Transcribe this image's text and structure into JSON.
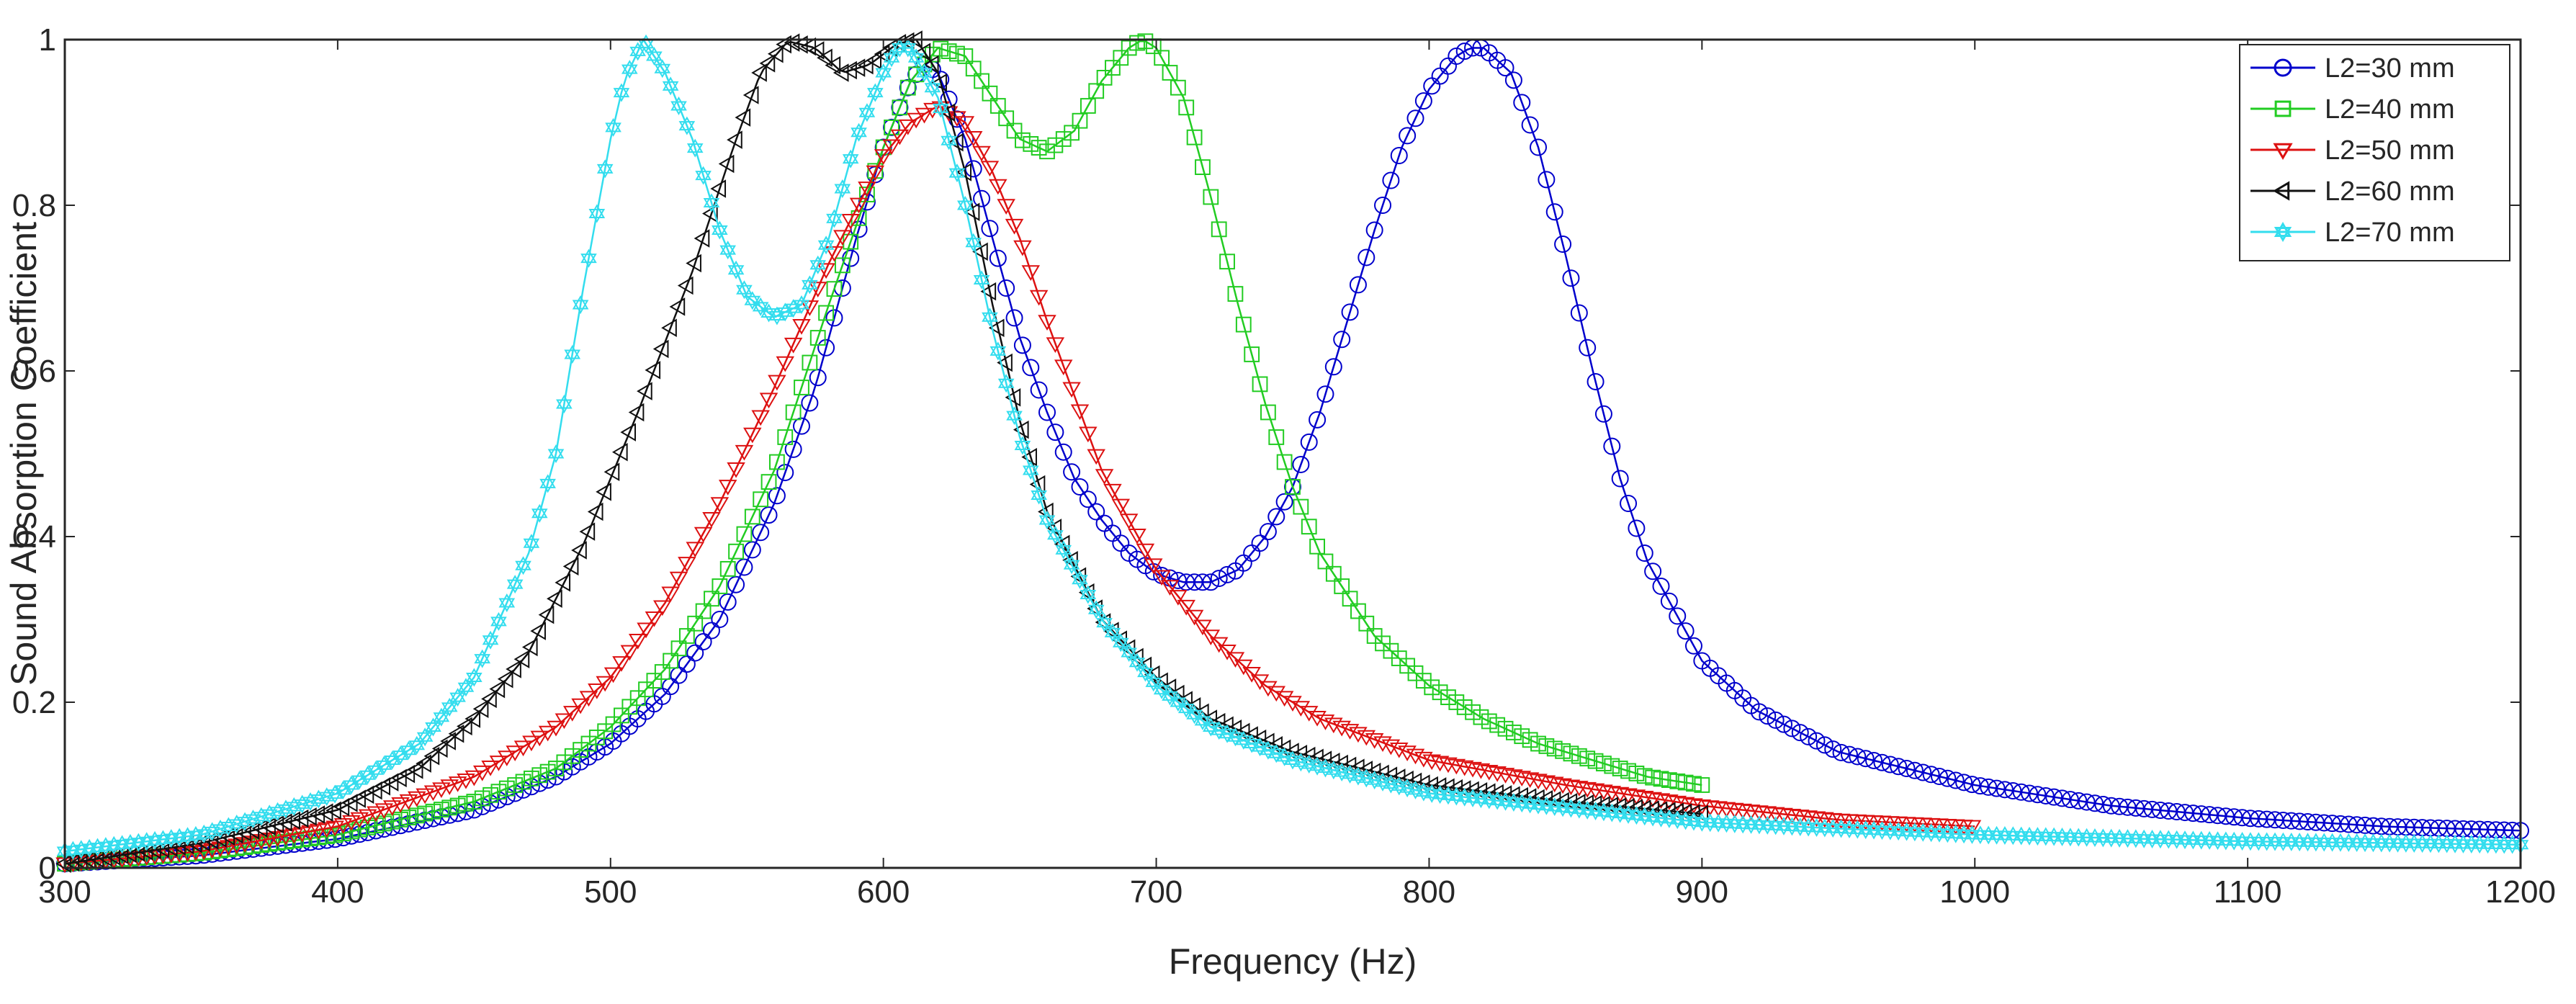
{
  "chart_data": {
    "type": "line",
    "title": "",
    "xlabel": "Frequency (Hz)",
    "ylabel": "Sound Absorption Coefficient",
    "xlim": [
      300,
      1200
    ],
    "ylim": [
      0,
      1
    ],
    "x_ticks": [
      300,
      400,
      500,
      600,
      700,
      800,
      900,
      1000,
      1100,
      1200
    ],
    "y_ticks": [
      0,
      0.2,
      0.4,
      0.6,
      0.8,
      1
    ],
    "x_tick_labels": [
      "300",
      "400",
      "500",
      "600",
      "700",
      "800",
      "900",
      "1000",
      "1100",
      "1200"
    ],
    "y_tick_labels": [
      "0",
      "0.2",
      "0.4",
      "0.6",
      "0.8",
      "1"
    ],
    "grid": false,
    "legend_position": "top-right",
    "series": [
      {
        "name": "L2=30 mm",
        "color": "#0000cc",
        "marker": "circle",
        "x_range": [
          300,
          1200
        ],
        "points": [
          [
            300,
            0.005
          ],
          [
            350,
            0.015
          ],
          [
            400,
            0.035
          ],
          [
            450,
            0.07
          ],
          [
            480,
            0.11
          ],
          [
            500,
            0.15
          ],
          [
            520,
            0.21
          ],
          [
            540,
            0.3
          ],
          [
            560,
            0.44
          ],
          [
            575,
            0.58
          ],
          [
            590,
            0.76
          ],
          [
            600,
            0.87
          ],
          [
            610,
            0.95
          ],
          [
            615,
            0.97
          ],
          [
            620,
            0.96
          ],
          [
            630,
            0.88
          ],
          [
            640,
            0.76
          ],
          [
            650,
            0.64
          ],
          [
            660,
            0.55
          ],
          [
            670,
            0.47
          ],
          [
            680,
            0.42
          ],
          [
            690,
            0.38
          ],
          [
            700,
            0.355
          ],
          [
            710,
            0.345
          ],
          [
            720,
            0.345
          ],
          [
            730,
            0.36
          ],
          [
            740,
            0.4
          ],
          [
            750,
            0.46
          ],
          [
            760,
            0.55
          ],
          [
            770,
            0.66
          ],
          [
            780,
            0.77
          ],
          [
            790,
            0.87
          ],
          [
            800,
            0.94
          ],
          [
            810,
            0.98
          ],
          [
            815,
            0.99
          ],
          [
            820,
            0.99
          ],
          [
            830,
            0.96
          ],
          [
            840,
            0.87
          ],
          [
            850,
            0.74
          ],
          [
            860,
            0.6
          ],
          [
            870,
            0.47
          ],
          [
            880,
            0.37
          ],
          [
            900,
            0.25
          ],
          [
            920,
            0.19
          ],
          [
            950,
            0.14
          ],
          [
            1000,
            0.1
          ],
          [
            1050,
            0.075
          ],
          [
            1100,
            0.06
          ],
          [
            1150,
            0.05
          ],
          [
            1200,
            0.045
          ]
        ]
      },
      {
        "name": "L2=40 mm",
        "color": "#22cc22",
        "marker": "square",
        "x_range": [
          300,
          900
        ],
        "points": [
          [
            300,
            0.005
          ],
          [
            350,
            0.018
          ],
          [
            400,
            0.04
          ],
          [
            450,
            0.08
          ],
          [
            480,
            0.12
          ],
          [
            500,
            0.17
          ],
          [
            520,
            0.24
          ],
          [
            540,
            0.34
          ],
          [
            560,
            0.48
          ],
          [
            580,
            0.68
          ],
          [
            600,
            0.87
          ],
          [
            610,
            0.95
          ],
          [
            620,
            0.99
          ],
          [
            630,
            0.98
          ],
          [
            640,
            0.93
          ],
          [
            650,
            0.88
          ],
          [
            660,
            0.865
          ],
          [
            670,
            0.89
          ],
          [
            680,
            0.95
          ],
          [
            690,
            0.99
          ],
          [
            695,
            1.0
          ],
          [
            700,
            0.99
          ],
          [
            710,
            0.93
          ],
          [
            720,
            0.81
          ],
          [
            730,
            0.68
          ],
          [
            740,
            0.56
          ],
          [
            750,
            0.46
          ],
          [
            760,
            0.38
          ],
          [
            780,
            0.28
          ],
          [
            800,
            0.22
          ],
          [
            820,
            0.18
          ],
          [
            840,
            0.15
          ],
          [
            860,
            0.13
          ],
          [
            880,
            0.11
          ],
          [
            900,
            0.1
          ]
        ]
      },
      {
        "name": "L2=50 mm",
        "color": "#dd1111",
        "marker": "triangle-down",
        "x_range": [
          300,
          1000
        ],
        "points": [
          [
            300,
            0.005
          ],
          [
            350,
            0.02
          ],
          [
            400,
            0.05
          ],
          [
            450,
            0.11
          ],
          [
            480,
            0.17
          ],
          [
            500,
            0.23
          ],
          [
            520,
            0.32
          ],
          [
            540,
            0.44
          ],
          [
            560,
            0.58
          ],
          [
            580,
            0.73
          ],
          [
            600,
            0.86
          ],
          [
            610,
            0.9
          ],
          [
            620,
            0.92
          ],
          [
            630,
            0.9
          ],
          [
            640,
            0.84
          ],
          [
            650,
            0.76
          ],
          [
            660,
            0.66
          ],
          [
            670,
            0.57
          ],
          [
            680,
            0.48
          ],
          [
            700,
            0.36
          ],
          [
            720,
            0.28
          ],
          [
            740,
            0.22
          ],
          [
            760,
            0.18
          ],
          [
            800,
            0.13
          ],
          [
            850,
            0.1
          ],
          [
            900,
            0.075
          ],
          [
            950,
            0.058
          ],
          [
            1000,
            0.05
          ]
        ]
      },
      {
        "name": "L2=60 mm",
        "color": "#111111",
        "marker": "triangle-left",
        "x_range": [
          300,
          900
        ],
        "points": [
          [
            300,
            0.005
          ],
          [
            350,
            0.03
          ],
          [
            400,
            0.07
          ],
          [
            430,
            0.12
          ],
          [
            450,
            0.18
          ],
          [
            470,
            0.26
          ],
          [
            490,
            0.39
          ],
          [
            510,
            0.55
          ],
          [
            530,
            0.72
          ],
          [
            545,
            0.87
          ],
          [
            555,
            0.96
          ],
          [
            565,
            0.998
          ],
          [
            575,
            0.99
          ],
          [
            585,
            0.96
          ],
          [
            595,
            0.97
          ],
          [
            605,
            0.995
          ],
          [
            612,
            1.0
          ],
          [
            620,
            0.96
          ],
          [
            630,
            0.84
          ],
          [
            640,
            0.68
          ],
          [
            650,
            0.54
          ],
          [
            660,
            0.43
          ],
          [
            680,
            0.3
          ],
          [
            700,
            0.23
          ],
          [
            720,
            0.18
          ],
          [
            750,
            0.14
          ],
          [
            800,
            0.1
          ],
          [
            850,
            0.08
          ],
          [
            900,
            0.065
          ]
        ]
      },
      {
        "name": "L2=70 mm",
        "color": "#33ddee",
        "marker": "hexagram",
        "x_range": [
          300,
          1200
        ],
        "points": [
          [
            300,
            0.02
          ],
          [
            350,
            0.04
          ],
          [
            400,
            0.09
          ],
          [
            430,
            0.15
          ],
          [
            450,
            0.23
          ],
          [
            470,
            0.38
          ],
          [
            480,
            0.5
          ],
          [
            490,
            0.7
          ],
          [
            500,
            0.88
          ],
          [
            505,
            0.95
          ],
          [
            512,
            1.0
          ],
          [
            520,
            0.96
          ],
          [
            530,
            0.88
          ],
          [
            540,
            0.77
          ],
          [
            550,
            0.69
          ],
          [
            560,
            0.665
          ],
          [
            570,
            0.68
          ],
          [
            580,
            0.76
          ],
          [
            590,
            0.88
          ],
          [
            600,
            0.96
          ],
          [
            605,
            0.99
          ],
          [
            610,
            0.99
          ],
          [
            620,
            0.93
          ],
          [
            630,
            0.8
          ],
          [
            640,
            0.65
          ],
          [
            650,
            0.52
          ],
          [
            660,
            0.42
          ],
          [
            680,
            0.3
          ],
          [
            700,
            0.22
          ],
          [
            720,
            0.17
          ],
          [
            750,
            0.13
          ],
          [
            800,
            0.09
          ],
          [
            900,
            0.055
          ],
          [
            1000,
            0.04
          ],
          [
            1100,
            0.032
          ],
          [
            1200,
            0.028
          ]
        ]
      }
    ]
  }
}
